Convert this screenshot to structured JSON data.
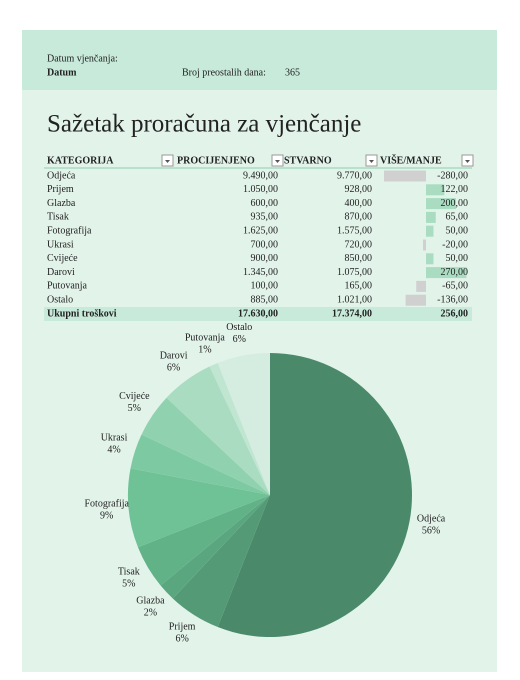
{
  "header": {
    "date_label": "Datum vjenčanja:",
    "date_value": "Datum",
    "days_label": "Broj preostalih dana:",
    "days_value": "365"
  },
  "title": "Sažetak proračuna za vjenčanje",
  "table": {
    "columns": [
      "KATEGORIJA",
      "PROCIJENJENO",
      "STVARNO",
      "VIŠE/MANJE"
    ],
    "rows": [
      [
        "Odjeća",
        "9.490,00",
        "9.770,00",
        {
          "value": -280,
          "label": "-280,00"
        }
      ],
      [
        "Prijem",
        "1.050,00",
        "928,00",
        {
          "value": 122,
          "label": "122,00"
        }
      ],
      [
        "Glazba",
        "600,00",
        "400,00",
        {
          "value": 200,
          "label": "200,00"
        }
      ],
      [
        "Tisak",
        "935,00",
        "870,00",
        {
          "value": 65,
          "label": "65,00"
        }
      ],
      [
        "Fotografija",
        "1.625,00",
        "1.575,00",
        {
          "value": 50,
          "label": "50,00"
        }
      ],
      [
        "Ukrasi",
        "700,00",
        "720,00",
        {
          "value": -20,
          "label": "-20,00"
        }
      ],
      [
        "Cvijeće",
        "900,00",
        "850,00",
        {
          "value": 50,
          "label": "50,00"
        }
      ],
      [
        "Darovi",
        "1.345,00",
        "1.075,00",
        {
          "value": 270,
          "label": "270,00"
        }
      ],
      [
        "Putovanja",
        "100,00",
        "165,00",
        {
          "value": -65,
          "label": "-65,00"
        }
      ],
      [
        "Ostalo",
        "885,00",
        "1.021,00",
        {
          "value": -136,
          "label": "-136,00"
        }
      ]
    ],
    "total": [
      "Ukupni troškovi",
      "17.630,00",
      "17.374,00",
      "256,00"
    ]
  },
  "chart_data": {
    "type": "pie",
    "categories": [
      "Odjeća",
      "Prijem",
      "Glazba",
      "Tisak",
      "Fotografija",
      "Ukrasi",
      "Cvijeće",
      "Darovi",
      "Putovanja",
      "Ostalo"
    ],
    "values": [
      56,
      6,
      2,
      5,
      9,
      4,
      5,
      6,
      1,
      6
    ],
    "value_labels": [
      "56%",
      "6%",
      "2%",
      "5%",
      "9%",
      "4%",
      "5%",
      "6%",
      "1%",
      "6%"
    ],
    "colors": [
      "#4a8a6a",
      "#549a76",
      "#5aa67f",
      "#62b288",
      "#6ec296",
      "#7dcaa2",
      "#90d2af",
      "#a9dcc1",
      "#c0e6d1",
      "#d4ede0"
    ]
  }
}
